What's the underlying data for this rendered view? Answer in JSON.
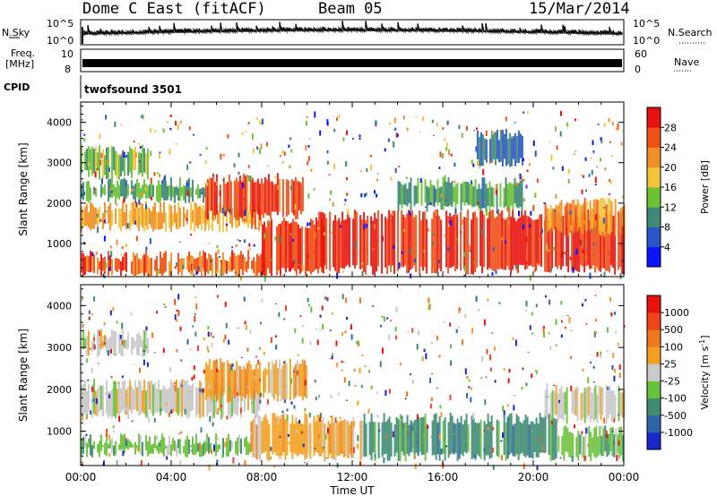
{
  "header": {
    "title": "Dome C East (fitACF)",
    "beam": "Beam 05",
    "date": "15/Mar/2014"
  },
  "strips": {
    "nsky_label": "N.Sky",
    "nsearch_label": "N.Search",
    "noise_tick_top": "10^5",
    "noise_tick_bottom": "10^0",
    "freq_label_line1": "Freq.",
    "freq_label_line2": "[MHz]",
    "freq_tick_top": "10",
    "freq_tick_bottom": "8",
    "nave_label": "Nave",
    "nave_tick_top": "60",
    "nave_tick_bottom": "0",
    "cpid_label": "CPID",
    "cpid_value": "twofsound 3501"
  },
  "chart_data": [
    {
      "type": "heatmap",
      "name": "power",
      "ylabel": "Slant Range [km]",
      "xlabel": "",
      "xlim": [
        0,
        24
      ],
      "ylim": [
        180,
        4500
      ],
      "yticks": [
        1000,
        2000,
        3000,
        4000
      ],
      "colorbar": {
        "label": "Power [dB]",
        "ticks": [
          "4",
          "8",
          "12",
          "16",
          "20",
          "24",
          "28"
        ],
        "range": [
          0,
          30
        ],
        "colors": [
          "#0a14ff",
          "#2a55c4",
          "#3f8a76",
          "#6dc135",
          "#f3c43a",
          "#f08f27",
          "#f04f17",
          "#e8110e"
        ]
      },
      "bands": [
        {
          "t0": 0.0,
          "t1": 8.2,
          "r0": 250,
          "r1": 700,
          "level": 25
        },
        {
          "t0": 0.0,
          "t1": 8.0,
          "r0": 1400,
          "r1": 1900,
          "level": 20
        },
        {
          "t0": 0.0,
          "t1": 5.5,
          "r0": 2100,
          "r1": 2500,
          "level": 11
        },
        {
          "t0": 0.0,
          "t1": 3.0,
          "r0": 2700,
          "r1": 3300,
          "level": 12
        },
        {
          "t0": 5.5,
          "t1": 9.8,
          "r0": 1700,
          "r1": 2600,
          "level": 27
        },
        {
          "t0": 8.0,
          "t1": 10.8,
          "r0": 300,
          "r1": 1500,
          "level": 28
        },
        {
          "t0": 10.5,
          "t1": 24.0,
          "r0": 350,
          "r1": 1700,
          "level": 28
        },
        {
          "t0": 14.0,
          "t1": 19.5,
          "r0": 1900,
          "r1": 2500,
          "level": 10
        },
        {
          "t0": 20.5,
          "t1": 24.0,
          "r0": 1300,
          "r1": 2000,
          "level": 22
        },
        {
          "t0": 17.5,
          "t1": 19.5,
          "r0": 3000,
          "r1": 3700,
          "level": 6
        }
      ]
    },
    {
      "type": "heatmap",
      "name": "velocity",
      "ylabel": "Slant Range [km]",
      "xlabel": "Time UT",
      "xlim": [
        0,
        24
      ],
      "ylim": [
        180,
        4500
      ],
      "yticks": [
        1000,
        2000,
        3000,
        4000
      ],
      "xticks": [
        "00:00",
        "04:00",
        "08:00",
        "12:00",
        "16:00",
        "20:00",
        "00:00"
      ],
      "colorbar": {
        "label": "Velocity [m s^-1]",
        "ticks": [
          "1000",
          "500",
          "100",
          "25",
          "-25",
          "-100",
          "-500",
          "-1000"
        ],
        "colors": [
          "#1b28c8",
          "#2d63a8",
          "#3e8c72",
          "#69c13c",
          "#c9c9c9",
          "#f3a020",
          "#f07820",
          "#f0451a",
          "#e8110e"
        ]
      },
      "bands": [
        {
          "t0": 0.0,
          "t1": 7.5,
          "r0": 500,
          "r1": 800,
          "level": 3
        },
        {
          "t0": 0.0,
          "t1": 8.0,
          "r0": 1400,
          "r1": 2100,
          "level": 4
        },
        {
          "t0": 0.0,
          "t1": 3.0,
          "r0": 2900,
          "r1": 3300,
          "level": 4
        },
        {
          "t0": 5.5,
          "t1": 10.0,
          "r0": 1800,
          "r1": 2600,
          "level": 5
        },
        {
          "t0": 7.5,
          "t1": 12.5,
          "r0": 400,
          "r1": 1300,
          "level": 5
        },
        {
          "t0": 12.5,
          "t1": 21.0,
          "r0": 400,
          "r1": 1300,
          "level": 2
        },
        {
          "t0": 21.0,
          "t1": 24.0,
          "r0": 400,
          "r1": 1000,
          "level": 3
        },
        {
          "t0": 20.5,
          "t1": 24.0,
          "r0": 1300,
          "r1": 2000,
          "level": 4
        }
      ]
    }
  ]
}
